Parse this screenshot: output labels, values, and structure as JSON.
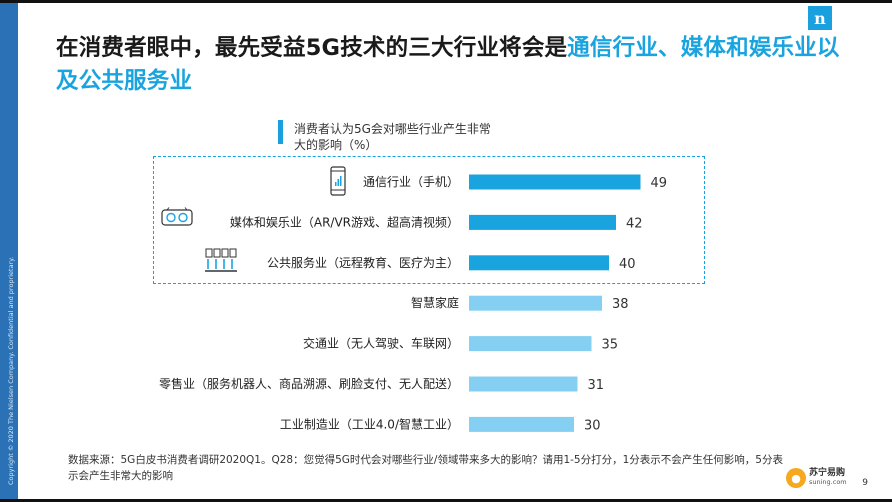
{
  "title": {
    "part1": "在消费者眼中，最先受益5G技术的三大行业将会是",
    "highlight": "通信行业、媒体和娱乐业以及公共服务业"
  },
  "subhead": "消费者认为5G会对哪些行业产生非常大的影响（%）",
  "source": "数据来源：5G白皮书消费者调研2020Q1。Q28：您觉得5G时代会对哪些行业/领域带来多大的影响？请用1-5分打分，1分表示不会产生任何影响，5分表示会产生非常大的影响",
  "copyright": "Copyright © 2020 The Nielsen Company. Confidential and proprietary.",
  "logo_letter": "n",
  "brand": {
    "name": "苏宁易购",
    "url": "suning.com",
    "icon": "fox-mascot-icon"
  },
  "page_number": "9",
  "colors": {
    "highlight_bar": "#1aa4df",
    "other_bar": "#85d0f2",
    "accent": "#1ba0df",
    "side_strip": "#2a72b5"
  },
  "icons": [
    "phone-icon",
    "vr-headset-icon",
    "public-service-icon"
  ],
  "chart_data": {
    "type": "bar",
    "orientation": "horizontal",
    "categories": [
      "通信行业（手机）",
      "媒体和娱乐业（AR/VR游戏、超高清视频）",
      "公共服务业（远程教育、医疗为主）",
      "智慧家庭",
      "交通业（无人驾驶、车联网）",
      "零售业（服务机器人、商品溯源、刷脸支付、无人配送）",
      "工业制造业（工业4.0/智慧工业）"
    ],
    "values": [
      49,
      42,
      40,
      38,
      35,
      31,
      30
    ],
    "highlighted": [
      true,
      true,
      true,
      false,
      false,
      false,
      false
    ],
    "title": "消费者认为5G会对哪些行业产生非常大的影响（%）",
    "xlim": [
      0,
      100
    ],
    "grid": false
  }
}
